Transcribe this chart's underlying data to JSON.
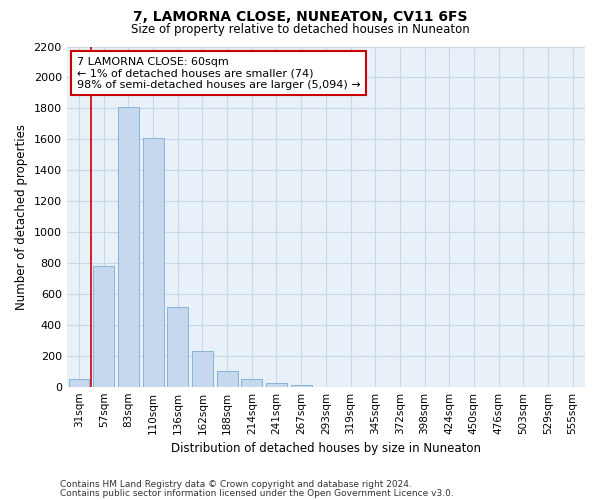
{
  "title": "7, LAMORNA CLOSE, NUNEATON, CV11 6FS",
  "subtitle": "Size of property relative to detached houses in Nuneaton",
  "xlabel": "Distribution of detached houses by size in Nuneaton",
  "ylabel": "Number of detached properties",
  "categories": [
    "31sqm",
    "57sqm",
    "83sqm",
    "110sqm",
    "136sqm",
    "162sqm",
    "188sqm",
    "214sqm",
    "241sqm",
    "267sqm",
    "293sqm",
    "319sqm",
    "345sqm",
    "372sqm",
    "398sqm",
    "424sqm",
    "450sqm",
    "476sqm",
    "503sqm",
    "529sqm",
    "555sqm"
  ],
  "values": [
    47,
    780,
    1810,
    1610,
    515,
    230,
    100,
    50,
    27,
    10,
    0,
    0,
    0,
    0,
    0,
    0,
    0,
    0,
    0,
    0,
    0
  ],
  "bar_color": "#c5d8ee",
  "bar_edge_color": "#7aadd4",
  "annotation_box_text_line1": "7 LAMORNA CLOSE: 60sqm",
  "annotation_box_text_line2": "← 1% of detached houses are smaller (74)",
  "annotation_box_text_line3": "98% of semi-detached houses are larger (5,094) →",
  "annotation_box_color": "#ffffff",
  "annotation_box_edge_color": "#cc0000",
  "vline_color": "#cc0000",
  "vline_x": 0.5,
  "ylim": [
    0,
    2200
  ],
  "yticks": [
    0,
    200,
    400,
    600,
    800,
    1000,
    1200,
    1400,
    1600,
    1800,
    2000,
    2200
  ],
  "footnote1": "Contains HM Land Registry data © Crown copyright and database right 2024.",
  "footnote2": "Contains public sector information licensed under the Open Government Licence v3.0.",
  "grid_color": "#c8d8e8",
  "background_color": "#e8f0f8"
}
